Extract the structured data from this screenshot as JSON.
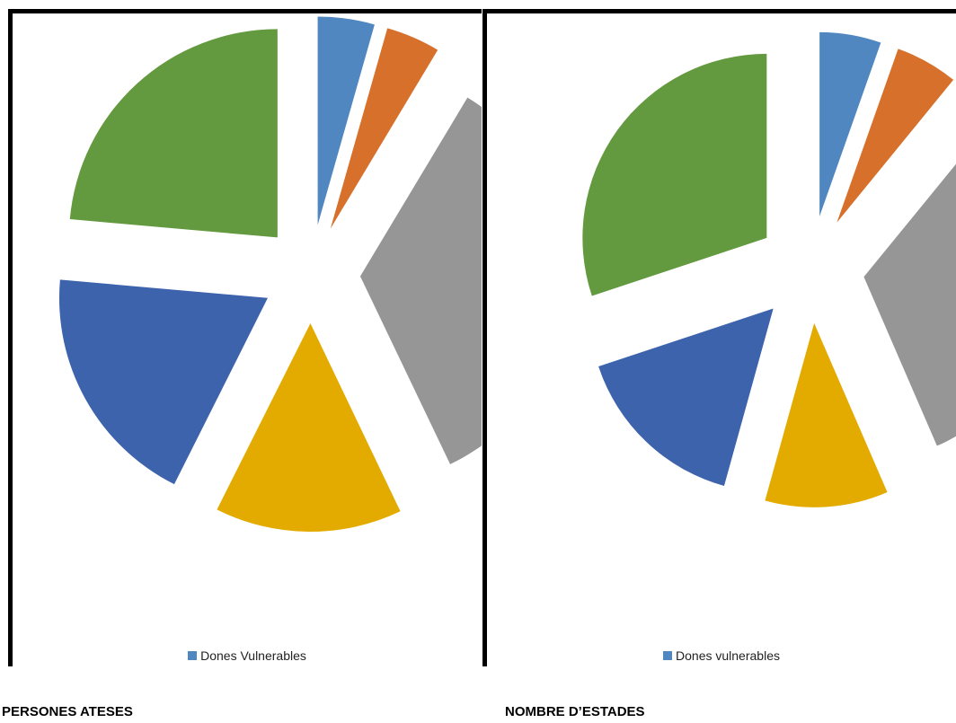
{
  "chart_data": [
    {
      "type": "pie",
      "title": "",
      "caption": "PERSONES ATESES",
      "slices": [
        {
          "name": "Dones Vulnerables",
          "value": 4.4,
          "color": "#5087c0"
        },
        {
          "name": "",
          "value": 4.2,
          "color": "#d6702b"
        },
        {
          "name": "",
          "value": 34.3,
          "color": "#969696"
        },
        {
          "name": "",
          "value": 14.5,
          "color": "#e3ab00"
        },
        {
          "name": "",
          "value": 19.0,
          "color": "#3d63ad"
        },
        {
          "name": "",
          "value": 23.6,
          "color": "#649a3f"
        }
      ],
      "legend": {
        "label": "Dones Vulnerables",
        "color": "#5087c0",
        "position": "bottom"
      }
    },
    {
      "type": "pie",
      "title": "",
      "caption": "NOMBRE D’ESTADES",
      "slices": [
        {
          "name": "Dones vulnerables",
          "value": 5.4,
          "color": "#5087c0"
        },
        {
          "name": "",
          "value": 5.5,
          "color": "#d6702b"
        },
        {
          "name": "",
          "value": 32.6,
          "color": "#969696"
        },
        {
          "name": "",
          "value": 10.8,
          "color": "#e3ab00"
        },
        {
          "name": "",
          "value": 15.6,
          "color": "#3d63ad"
        },
        {
          "name": "",
          "value": 30.1,
          "color": "#649a3f"
        }
      ],
      "legend": {
        "label": "Dones vulnerables",
        "color": "#5087c0",
        "position": "bottom"
      }
    }
  ]
}
